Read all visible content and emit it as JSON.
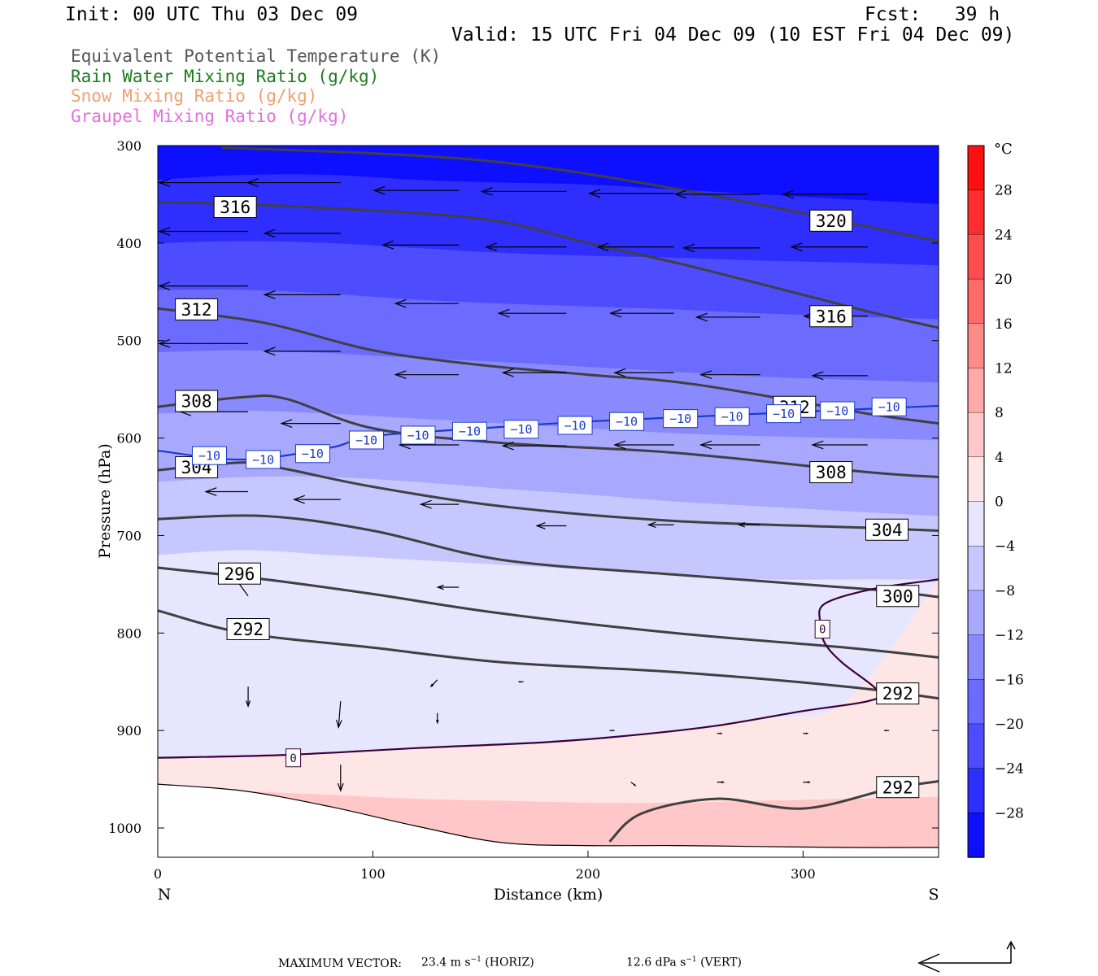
{
  "header": {
    "init": "Init: 00 UTC Thu 03 Dec 09",
    "fcst": "Fcst:   39 h",
    "valid": "Valid: 15 UTC Fri 04 Dec 09 (10 EST Fri 04 Dec 09)"
  },
  "legend": [
    {
      "text": "Equivalent Potential Temperature (K)",
      "color": "#555555"
    },
    {
      "text": "Rain Water Mixing Ratio (g/kg)",
      "color": "#1f7a1f"
    },
    {
      "text": "Snow Mixing Ratio (g/kg)",
      "color": "#f0a070"
    },
    {
      "text": "Graupel Mixing Ratio (g/kg)",
      "color": "#e070e0"
    }
  ],
  "chart_data": {
    "type": "cross-section",
    "xlabel": "Distance (km)",
    "ylabel": "Pressure (hPa)",
    "x_range": [
      0,
      363
    ],
    "y_range": [
      300,
      1030
    ],
    "y_scale": "linear, inverted",
    "x_ticks": [
      0,
      100,
      200,
      300
    ],
    "y_ticks": [
      300,
      400,
      500,
      600,
      700,
      800,
      900,
      1000
    ],
    "left_end_label": "N",
    "right_end_label": "S",
    "colorbar": {
      "unit": "°C",
      "tick_labels": [
        "28",
        "24",
        "20",
        "16",
        "12",
        "8",
        "4",
        "0",
        "−4",
        "−8",
        "−12",
        "−16",
        "−20",
        "−24",
        "−28"
      ],
      "tick_values": [
        28,
        24,
        20,
        16,
        12,
        8,
        4,
        0,
        -4,
        -8,
        -12,
        -16,
        -20,
        -24,
        -28
      ],
      "min": -32,
      "max": 32,
      "step": 4
    },
    "temperature_fill_levels": [
      {
        "x": [
          0,
          40,
          80,
          120,
          160,
          200,
          240,
          280,
          320,
          363
        ],
        "p": [
          335,
          330,
          330,
          335,
          338,
          340,
          345,
          350,
          355,
          360
        ],
        "t": -28
      },
      {
        "x": [
          0,
          40,
          80,
          120,
          160,
          200,
          240,
          280,
          320,
          363
        ],
        "p": [
          400,
          398,
          400,
          405,
          410,
          413,
          415,
          418,
          420,
          423
        ],
        "t": -24
      },
      {
        "x": [
          0,
          40,
          80,
          120,
          160,
          200,
          240,
          280,
          320,
          363
        ],
        "p": [
          448,
          448,
          452,
          458,
          462,
          465,
          468,
          472,
          475,
          478
        ],
        "t": -20
      },
      {
        "x": [
          0,
          40,
          80,
          120,
          160,
          200,
          240,
          280,
          320,
          363
        ],
        "p": [
          512,
          510,
          513,
          518,
          522,
          527,
          532,
          537,
          540,
          543
        ],
        "t": -16
      },
      {
        "x": [
          0,
          40,
          80,
          120,
          160,
          200,
          240,
          280,
          320,
          363
        ],
        "p": [
          575,
          572,
          575,
          580,
          585,
          590,
          595,
          598,
          600,
          602
        ],
        "t": -12
      },
      {
        "x": [
          0,
          40,
          80,
          120,
          160,
          200,
          240,
          280,
          320,
          363
        ],
        "p": [
          645,
          640,
          640,
          645,
          652,
          658,
          665,
          670,
          675,
          680
        ],
        "t": -8
      },
      {
        "x": [
          0,
          40,
          80,
          120,
          160,
          200,
          240,
          280,
          320,
          363
        ],
        "p": [
          720,
          715,
          720,
          725,
          730,
          735,
          740,
          745,
          745,
          745
        ],
        "t": -4
      },
      {
        "x": [
          0,
          40,
          80,
          120,
          160,
          200,
          240,
          280,
          320,
          363
        ],
        "p": [
          928,
          925,
          922,
          918,
          915,
          910,
          900,
          888,
          870,
          745
        ],
        "t": 0
      },
      {
        "x": [
          0,
          40,
          80,
          120,
          160,
          200,
          240,
          280,
          320,
          363
        ],
        "p": [
          958,
          962,
          966,
          970,
          972,
          974,
          974,
          972,
          970,
          968
        ],
        "t": 4
      }
    ],
    "theta_e_isolines": [
      {
        "label": "320",
        "x": [
          30,
          150,
          250,
          363
        ],
        "p": [
          302,
          315,
          348,
          398
        ]
      },
      {
        "label": "316",
        "x": [
          0,
          60,
          150,
          200,
          250,
          330,
          363
        ],
        "p": [
          358,
          362,
          375,
          400,
          425,
          470,
          487
        ]
      },
      {
        "label": "312",
        "x": [
          0,
          50,
          100,
          150,
          200,
          250,
          330,
          363
        ],
        "p": [
          467,
          482,
          510,
          525,
          535,
          545,
          575,
          585
        ]
      },
      {
        "label": "308",
        "x": [
          0,
          40,
          60,
          100,
          160,
          240,
          330,
          363
        ],
        "p": [
          568,
          558,
          560,
          590,
          605,
          615,
          635,
          640
        ]
      },
      {
        "label": "304",
        "x": [
          0,
          40,
          60,
          100,
          160,
          240,
          330,
          363
        ],
        "p": [
          633,
          625,
          632,
          650,
          670,
          685,
          692,
          695
        ]
      },
      {
        "label": "300",
        "x": [
          0,
          50,
          100,
          160,
          240,
          330,
          363
        ],
        "p": [
          683,
          680,
          695,
          725,
          740,
          755,
          763
        ]
      },
      {
        "label": "296",
        "x": [
          0,
          50,
          100,
          160,
          240,
          320,
          363
        ],
        "p": [
          733,
          745,
          760,
          780,
          800,
          815,
          825
        ]
      },
      {
        "label": "292",
        "x": [
          0,
          40,
          100,
          160,
          240,
          320,
          363
        ],
        "p": [
          777,
          800,
          815,
          830,
          840,
          855,
          867
        ]
      },
      {
        "label": "292",
        "x": [
          210,
          225,
          260,
          300,
          340,
          363
        ],
        "p": [
          1014,
          985,
          970,
          980,
          960,
          952
        ]
      }
    ],
    "temp_minus10_isotherm": {
      "x": [
        0,
        40,
        80,
        100,
        150,
        200,
        250,
        300,
        363
      ],
      "p": [
        613,
        622,
        610,
        598,
        590,
        583,
        578,
        573,
        567
      ]
    },
    "temp_zero_isotherm": {
      "x": [
        0,
        60,
        120,
        180,
        220,
        260,
        300,
        330,
        335,
        318,
        310,
        308,
        310,
        332,
        363
      ],
      "p": [
        928,
        925,
        918,
        912,
        905,
        895,
        880,
        870,
        860,
        830,
        810,
        790,
        770,
        755,
        745
      ]
    },
    "terrain": {
      "x": [
        0,
        40,
        80,
        120,
        160,
        200,
        240,
        280,
        320,
        363
      ],
      "p": [
        955,
        962,
        978,
        998,
        1015,
        1018,
        1018,
        1019,
        1020,
        1020
      ]
    },
    "wind_vectors": [
      {
        "x": 42,
        "p": 338,
        "u": -42,
        "w": 0
      },
      {
        "x": 42,
        "p": 388,
        "u": -42,
        "w": 0
      },
      {
        "x": 42,
        "p": 444,
        "u": -42,
        "w": 0
      },
      {
        "x": 42,
        "p": 503,
        "u": -42,
        "w": 0
      },
      {
        "x": 42,
        "p": 573,
        "u": -32,
        "w": 0
      },
      {
        "x": 42,
        "p": 655,
        "u": -20,
        "w": 0
      },
      {
        "x": 42,
        "p": 762,
        "u": -9,
        "w": -8
      },
      {
        "x": 85,
        "p": 338,
        "u": -44,
        "w": 0
      },
      {
        "x": 85,
        "p": 390,
        "u": -36,
        "w": 0
      },
      {
        "x": 85,
        "p": 453,
        "u": -36,
        "w": 0
      },
      {
        "x": 85,
        "p": 511,
        "u": -36,
        "w": 0
      },
      {
        "x": 85,
        "p": 585,
        "u": -28,
        "w": 0
      },
      {
        "x": 85,
        "p": 663,
        "u": -22,
        "w": 0
      },
      {
        "x": 140,
        "p": 346,
        "u": -40,
        "w": 0
      },
      {
        "x": 140,
        "p": 402,
        "u": -36,
        "w": 0
      },
      {
        "x": 140,
        "p": 462,
        "u": -30,
        "w": 0
      },
      {
        "x": 140,
        "p": 535,
        "u": -30,
        "w": 0
      },
      {
        "x": 140,
        "p": 607,
        "u": -28,
        "w": 0
      },
      {
        "x": 140,
        "p": 668,
        "u": -18,
        "w": 0
      },
      {
        "x": 140,
        "p": 753,
        "u": -10,
        "w": 0
      },
      {
        "x": 190,
        "p": 347,
        "u": -40,
        "w": 0
      },
      {
        "x": 190,
        "p": 404,
        "u": -38,
        "w": 0
      },
      {
        "x": 190,
        "p": 472,
        "u": -32,
        "w": 0
      },
      {
        "x": 190,
        "p": 533,
        "u": -30,
        "w": 0
      },
      {
        "x": 190,
        "p": 608,
        "u": -30,
        "w": 0
      },
      {
        "x": 190,
        "p": 690,
        "u": -14,
        "w": 0
      },
      {
        "x": 240,
        "p": 349,
        "u": -40,
        "w": 0
      },
      {
        "x": 240,
        "p": 404,
        "u": -36,
        "w": 0
      },
      {
        "x": 240,
        "p": 472,
        "u": -30,
        "w": 0
      },
      {
        "x": 240,
        "p": 533,
        "u": -28,
        "w": 0
      },
      {
        "x": 240,
        "p": 607,
        "u": -28,
        "w": 0
      },
      {
        "x": 240,
        "p": 689,
        "u": -12,
        "w": 0
      },
      {
        "x": 280,
        "p": 350,
        "u": -40,
        "w": 0
      },
      {
        "x": 280,
        "p": 405,
        "u": -36,
        "w": 0
      },
      {
        "x": 280,
        "p": 476,
        "u": -30,
        "w": 0
      },
      {
        "x": 280,
        "p": 535,
        "u": -28,
        "w": 0
      },
      {
        "x": 280,
        "p": 607,
        "u": -28,
        "w": 0
      },
      {
        "x": 280,
        "p": 689,
        "u": -10,
        "w": 0
      },
      {
        "x": 330,
        "p": 350,
        "u": -40,
        "w": 0
      },
      {
        "x": 330,
        "p": 404,
        "u": -36,
        "w": 0
      },
      {
        "x": 330,
        "p": 475,
        "u": -30,
        "w": 0
      },
      {
        "x": 330,
        "p": 536,
        "u": -26,
        "w": 0
      },
      {
        "x": 330,
        "p": 607,
        "u": -26,
        "w": 0
      },
      {
        "x": 42,
        "p": 855,
        "u": 0,
        "w": 6
      },
      {
        "x": 85,
        "p": 870,
        "u": -1,
        "w": 8
      },
      {
        "x": 85,
        "p": 935,
        "u": 0,
        "w": 8
      },
      {
        "x": 130,
        "p": 848,
        "u": -3,
        "w": 2
      },
      {
        "x": 130,
        "p": 882,
        "u": 0,
        "w": 3
      },
      {
        "x": 170,
        "p": 850,
        "u": -2,
        "w": 0
      },
      {
        "x": 210,
        "p": 900,
        "u": 2,
        "w": 0
      },
      {
        "x": 260,
        "p": 903,
        "u": 2,
        "w": 0
      },
      {
        "x": 300,
        "p": 903,
        "u": 2,
        "w": 0
      },
      {
        "x": 340,
        "p": 900,
        "u": -2,
        "w": 0
      },
      {
        "x": 220,
        "p": 953,
        "u": 2,
        "w": 1
      },
      {
        "x": 260,
        "p": 953,
        "u": 3,
        "w": 0
      },
      {
        "x": 300,
        "p": 953,
        "u": 3,
        "w": 0
      },
      {
        "x": 340,
        "p": 953,
        "u": -3,
        "w": 0
      }
    ],
    "contour_labels": [
      {
        "text": "316",
        "x": 36,
        "p": 363,
        "style": "theta"
      },
      {
        "text": "320",
        "x": 313,
        "p": 377,
        "style": "theta"
      },
      {
        "text": "312",
        "x": 18,
        "p": 468,
        "style": "theta"
      },
      {
        "text": "316",
        "x": 313,
        "p": 475,
        "style": "theta"
      },
      {
        "text": "308",
        "x": 18,
        "p": 562,
        "style": "theta"
      },
      {
        "text": "312",
        "x": 296,
        "p": 568,
        "style": "theta"
      },
      {
        "text": "304",
        "x": 18,
        "p": 630,
        "style": "theta"
      },
      {
        "text": "308",
        "x": 313,
        "p": 635,
        "style": "theta"
      },
      {
        "text": "304",
        "x": 339,
        "p": 694,
        "style": "theta"
      },
      {
        "text": "296",
        "x": 38,
        "p": 739,
        "style": "theta"
      },
      {
        "text": "300",
        "x": 344,
        "p": 762,
        "style": "theta"
      },
      {
        "text": "292",
        "x": 42,
        "p": 796,
        "style": "theta"
      },
      {
        "text": "292",
        "x": 344,
        "p": 862,
        "style": "theta"
      },
      {
        "text": "292",
        "x": 344,
        "p": 958,
        "style": "theta"
      },
      {
        "text": "0",
        "x": 63,
        "p": 928,
        "style": "zero"
      },
      {
        "text": "0",
        "x": 309,
        "p": 796,
        "style": "zero"
      },
      {
        "text": "−10",
        "x": 24,
        "p": 618,
        "style": "minus10"
      },
      {
        "text": "−10",
        "x": 49,
        "p": 622,
        "style": "minus10"
      },
      {
        "text": "−10",
        "x": 72,
        "p": 616,
        "style": "minus10"
      },
      {
        "text": "−10",
        "x": 97,
        "p": 602,
        "style": "minus10"
      },
      {
        "text": "−10",
        "x": 121,
        "p": 597,
        "style": "minus10"
      },
      {
        "text": "−10",
        "x": 145,
        "p": 593,
        "style": "minus10"
      },
      {
        "text": "−10",
        "x": 169,
        "p": 591,
        "style": "minus10"
      },
      {
        "text": "−10",
        "x": 194,
        "p": 587,
        "style": "minus10"
      },
      {
        "text": "−10",
        "x": 218,
        "p": 583,
        "style": "minus10"
      },
      {
        "text": "−10",
        "x": 243,
        "p": 580,
        "style": "minus10"
      },
      {
        "text": "−10",
        "x": 267,
        "p": 578,
        "style": "minus10"
      },
      {
        "text": "−10",
        "x": 291,
        "p": 575,
        "style": "minus10"
      },
      {
        "text": "−10",
        "x": 316,
        "p": 572,
        "style": "minus10"
      },
      {
        "text": "−10",
        "x": 340,
        "p": 568,
        "style": "minus10"
      }
    ]
  },
  "footer": {
    "label": "MAXIMUM VECTOR:",
    "horiz_value": "23.4 m s",
    "horiz_exp": "−1",
    "horiz_unit": "(HORIZ)",
    "vert_value": "12.6 dPa s",
    "vert_exp": "−1",
    "vert_unit": "(VERT)"
  }
}
